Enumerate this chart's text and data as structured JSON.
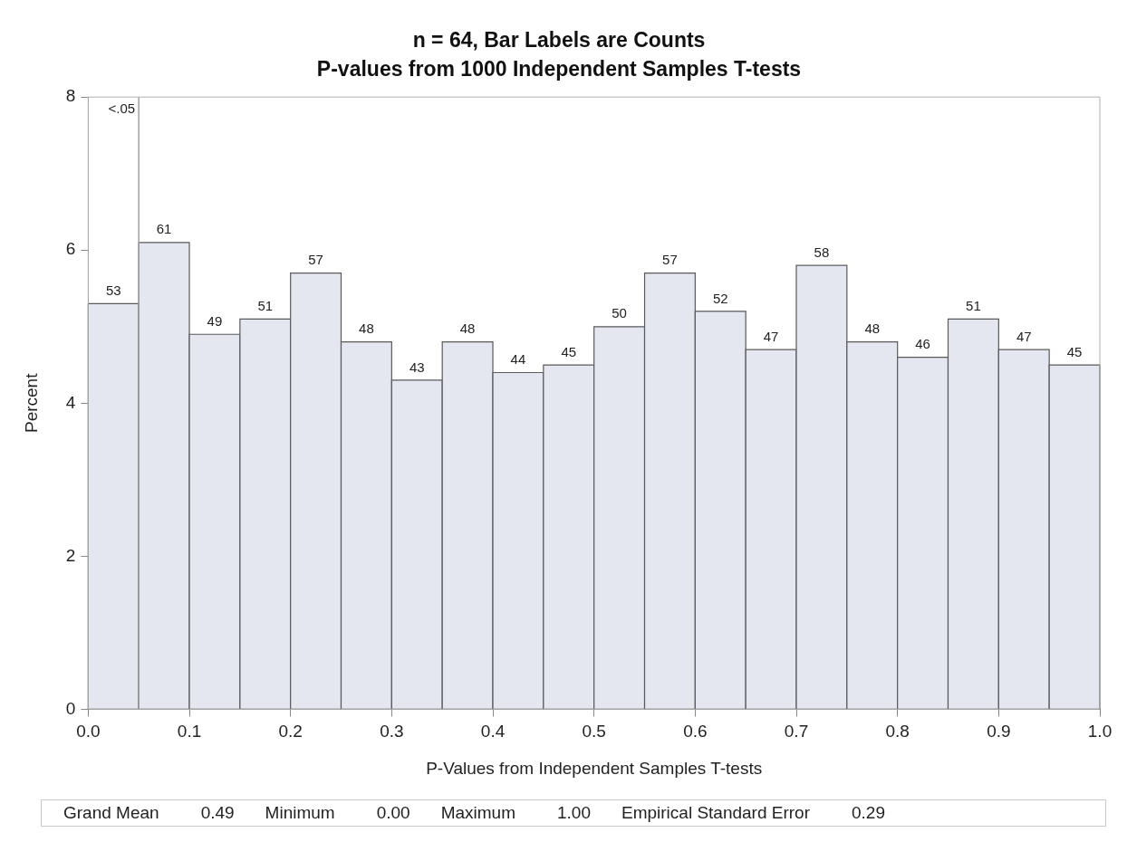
{
  "chart_data": {
    "type": "histogram",
    "title": "n = 64, Bar Labels are Counts",
    "subtitle": "P-values from 1000 Independent Samples T-tests",
    "xlabel": "P-Values from Independent Samples T-tests",
    "ylabel": "Percent",
    "bins": [
      0,
      0.05,
      0.1,
      0.15,
      0.2,
      0.25,
      0.3,
      0.35,
      0.4,
      0.45,
      0.5,
      0.55,
      0.6,
      0.65,
      0.7,
      0.75,
      0.8,
      0.85,
      0.9,
      0.95,
      1.0
    ],
    "values": [
      5.3,
      6.1,
      4.9,
      5.1,
      5.7,
      4.8,
      4.3,
      4.8,
      4.4,
      4.5,
      5.0,
      5.7,
      5.2,
      4.7,
      5.8,
      4.8,
      4.6,
      5.1,
      4.7,
      4.5
    ],
    "color": "#e4e7ef",
    "xlim": [
      0,
      1
    ],
    "xticks": [
      {
        "value": 0,
        "label": "0.0"
      },
      0.1,
      0.2,
      0.3,
      0.4,
      0.5,
      0.6,
      0.7,
      0.8,
      0.9,
      {
        "value": 1,
        "label": "1.0"
      }
    ],
    "ylim": [
      0,
      8
    ],
    "yticks": [
      0,
      2,
      4,
      6,
      8
    ],
    "grid": false,
    "legend": false,
    "ref_lines": [
      {
        "axis": "x",
        "value": 0.05,
        "label": "<.05",
        "color": "#a0a0a0"
      }
    ],
    "annotations": [
      {
        "text": "53",
        "x": 0.025,
        "y": 5.3
      },
      {
        "text": "61",
        "x": 0.075,
        "y": 6.1
      },
      {
        "text": "49",
        "x": 0.125,
        "y": 4.9
      },
      {
        "text": "51",
        "x": 0.175,
        "y": 5.1
      },
      {
        "text": "57",
        "x": 0.225,
        "y": 5.7
      },
      {
        "text": "48",
        "x": 0.275,
        "y": 4.8
      },
      {
        "text": "43",
        "x": 0.325,
        "y": 4.3
      },
      {
        "text": "48",
        "x": 0.375,
        "y": 4.8
      },
      {
        "text": "44",
        "x": 0.425,
        "y": 4.4
      },
      {
        "text": "45",
        "x": 0.475,
        "y": 4.5
      },
      {
        "text": "50",
        "x": 0.525,
        "y": 5.0
      },
      {
        "text": "57",
        "x": 0.575,
        "y": 5.7
      },
      {
        "text": "52",
        "x": 0.625,
        "y": 5.2
      },
      {
        "text": "47",
        "x": 0.675,
        "y": 4.7
      },
      {
        "text": "58",
        "x": 0.725,
        "y": 5.8
      },
      {
        "text": "48",
        "x": 0.775,
        "y": 4.8
      },
      {
        "text": "46",
        "x": 0.825,
        "y": 4.6
      },
      {
        "text": "51",
        "x": 0.875,
        "y": 5.1
      },
      {
        "text": "47",
        "x": 0.925,
        "y": 4.7
      },
      {
        "text": "45",
        "x": 0.975,
        "y": 4.5
      },
      "Grand Mean",
      "0.49",
      "Minimum",
      "0.00",
      "Maximum",
      "1.00",
      "Empirical Standard Error",
      "0.29"
    ]
  }
}
